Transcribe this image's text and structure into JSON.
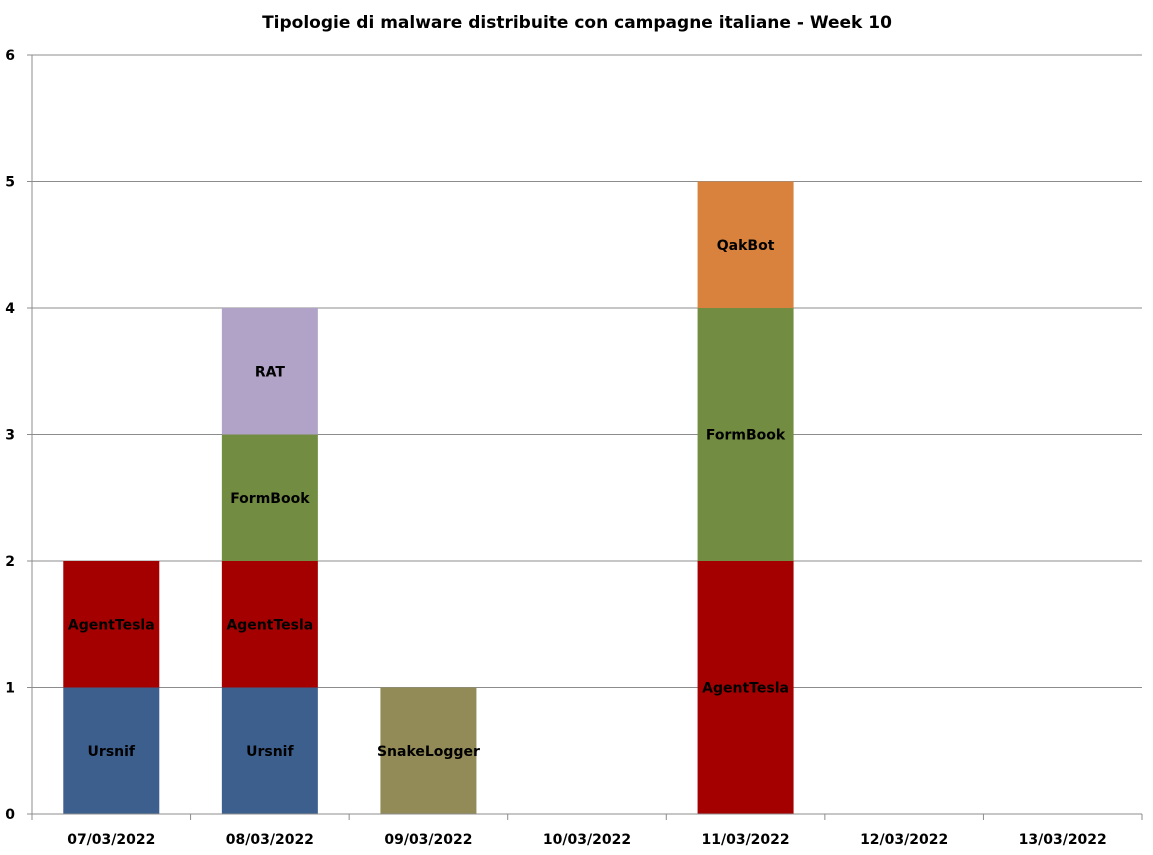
{
  "chart_data": {
    "type": "bar",
    "stacked": true,
    "title": "Tipologie  di malware distribuite con campagne italiane - Week 10",
    "xlabel": "",
    "ylabel": "",
    "ylim": [
      0,
      6
    ],
    "yticks": [
      "0",
      "1",
      "2",
      "3",
      "4",
      "5",
      "6"
    ],
    "grid": true,
    "legend": "none",
    "categories": [
      "07/03/2022",
      "08/03/2022",
      "09/03/2022",
      "10/03/2022",
      "11/03/2022",
      "12/03/2022",
      "13/03/2022"
    ],
    "series": [
      {
        "name": "Ursnif",
        "color": "#3C5F8E",
        "values": [
          1,
          1,
          0,
          0,
          0,
          0,
          0
        ]
      },
      {
        "name": "AgentTesla",
        "color": "#A50000",
        "values": [
          1,
          1,
          0,
          0,
          2,
          0,
          0
        ]
      },
      {
        "name": "FormBook",
        "color": "#728C42",
        "values": [
          0,
          1,
          0,
          0,
          2,
          0,
          0
        ]
      },
      {
        "name": "RAT",
        "color": "#B1A3C8",
        "values": [
          0,
          1,
          0,
          0,
          0,
          0,
          0
        ]
      },
      {
        "name": "SnakeLogger",
        "color": "#928A57",
        "values": [
          0,
          0,
          1,
          0,
          0,
          0,
          0
        ]
      },
      {
        "name": "QakBot",
        "color": "#D9823E",
        "values": [
          0,
          0,
          0,
          0,
          1,
          0,
          0
        ]
      }
    ]
  }
}
